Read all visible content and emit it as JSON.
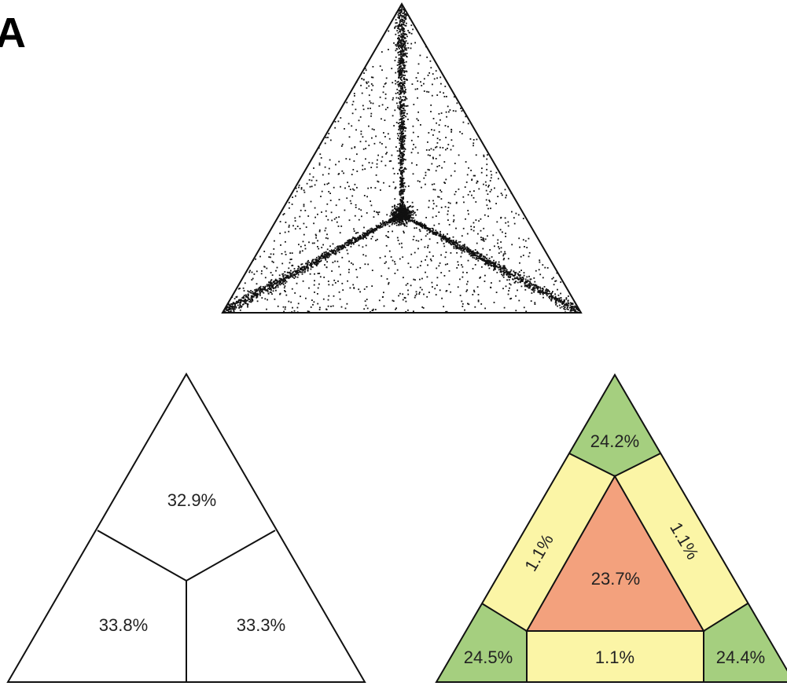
{
  "panel_label": "A",
  "scatter": {
    "center_cluster": "dense-center",
    "arms": [
      "top",
      "bottom-left",
      "bottom-right"
    ]
  },
  "voronoi_partition": {
    "regions": [
      {
        "id": "top",
        "label": "32.9%"
      },
      {
        "id": "bottom-left",
        "label": "33.8%"
      },
      {
        "id": "bottom-right",
        "label": "33.3%"
      }
    ]
  },
  "zone_partition": {
    "colors": {
      "corner": "#a5cf7f",
      "edge": "#fbf5a6",
      "center": "#f3a17d"
    },
    "regions": [
      {
        "id": "top-corner",
        "zone": "corner",
        "label": "24.2%"
      },
      {
        "id": "left-edge",
        "zone": "edge",
        "label": "1.1%"
      },
      {
        "id": "right-edge",
        "zone": "edge",
        "label": "1.1%"
      },
      {
        "id": "center",
        "zone": "center",
        "label": "23.7%"
      },
      {
        "id": "bottom-left-corner",
        "zone": "corner",
        "label": "24.5%"
      },
      {
        "id": "bottom-edge",
        "zone": "edge",
        "label": "1.1%"
      },
      {
        "id": "bottom-right-corner",
        "zone": "corner",
        "label": "24.4%"
      }
    ]
  }
}
